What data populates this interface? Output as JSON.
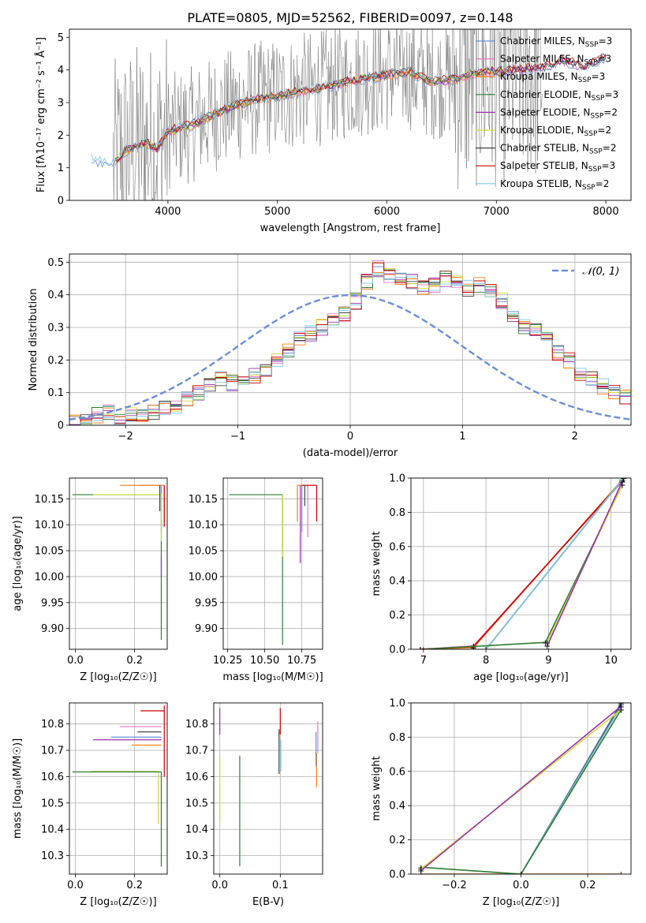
{
  "figure_title": "PLATE=0805, MJD=52562, FIBERID=0097, z=0.148",
  "colors": {
    "grid": "#b0b0b0",
    "spectrum": "#808080",
    "gauss": "#6a8fd8"
  },
  "models": [
    {
      "name": "Chabrier MILES",
      "nssp": "3",
      "color": "#6a8fd8"
    },
    {
      "name": "Salpeter MILES",
      "nssp": "3",
      "color": "#e377c2"
    },
    {
      "name": "Kroupa MILES",
      "nssp": "3",
      "color": "#ff7f0e"
    },
    {
      "name": "Chabrier ELODIE",
      "nssp": "3",
      "color": "#2e7d32"
    },
    {
      "name": "Salpeter ELODIE",
      "nssp": "2",
      "color": "#9b30b0"
    },
    {
      "name": "Kroupa ELODIE",
      "nssp": "2",
      "color": "#cddc39"
    },
    {
      "name": "Chabrier STELIB",
      "nssp": "2",
      "color": "#444444"
    },
    {
      "name": "Salpeter STELIB",
      "nssp": "3",
      "color": "#cc0000"
    },
    {
      "name": "Kroupa STELIB",
      "nssp": "2",
      "color": "#7ec8e3"
    }
  ],
  "chart_data": [
    {
      "id": "spectrum",
      "type": "line",
      "title": "PLATE=0805, MJD=52562, FIBERID=0097, z=0.148",
      "xlabel": "wavelength [Angstrom, rest frame]",
      "ylabel": "Flux [fλ10⁻¹⁷ erg cm⁻² s⁻¹ Å⁻¹]",
      "xlim": [
        3100,
        8230
      ],
      "ylim": [
        0,
        5.25
      ],
      "xticks": [
        4000,
        5000,
        6000,
        7000,
        8000
      ],
      "yticks": [
        0,
        1,
        2,
        3,
        4,
        5
      ],
      "grid": false,
      "legend": "right",
      "continuum": {
        "x": [
          3300,
          3400,
          3500,
          3600,
          3700,
          3800,
          3900,
          4000,
          4200,
          4400,
          4600,
          4800,
          5000,
          5200,
          5400,
          5600,
          5800,
          6000,
          6200,
          6400,
          6600,
          6800,
          7000,
          7200,
          7400,
          7600,
          7800,
          8000
        ],
        "y": [
          1.25,
          1.15,
          1.1,
          1.5,
          1.65,
          1.75,
          1.6,
          2.1,
          2.3,
          2.6,
          2.9,
          3.1,
          3.2,
          3.35,
          3.45,
          3.6,
          3.75,
          3.85,
          3.95,
          3.65,
          3.7,
          3.9,
          3.95,
          4.0,
          4.05,
          4.3,
          4.1,
          4.4
        ]
      }
    },
    {
      "id": "residuals",
      "type": "line",
      "xlabel": "(data-model)/error",
      "ylabel": "Normed distribution",
      "xlim": [
        -2.5,
        2.5
      ],
      "ylim": [
        0,
        0.525
      ],
      "xticks": [
        -2,
        -1,
        0,
        1,
        2
      ],
      "yticks": [
        0.0,
        0.1,
        0.2,
        0.3,
        0.4,
        0.5
      ],
      "grid": true,
      "legend": "top-right",
      "legend_label": "𝒩(0, 1)",
      "histogram": {
        "bin_width": 0.1,
        "x_start": -2.5,
        "values": [
          0.01,
          0.02,
          0.03,
          0.04,
          0.02,
          0.03,
          0.03,
          0.04,
          0.05,
          0.06,
          0.08,
          0.1,
          0.12,
          0.14,
          0.13,
          0.15,
          0.15,
          0.17,
          0.2,
          0.23,
          0.27,
          0.28,
          0.3,
          0.32,
          0.34,
          0.38,
          0.44,
          0.48,
          0.46,
          0.45,
          0.44,
          0.42,
          0.43,
          0.45,
          0.44,
          0.42,
          0.43,
          0.41,
          0.38,
          0.34,
          0.3,
          0.3,
          0.26,
          0.22,
          0.2,
          0.16,
          0.14,
          0.12,
          0.1,
          0.09,
          0.07,
          0.06,
          0.05,
          0.05,
          0.04,
          0.04,
          0.03,
          0.03,
          0.03,
          0.02,
          0.02
        ]
      }
    },
    {
      "id": "age-z",
      "type": "line",
      "xlabel": "Z [log₁₀(Z/Z☉)]",
      "ylabel": "age  [log₁₀(age/yr)]",
      "xlim": [
        -0.02,
        0.31
      ],
      "ylim": [
        9.86,
        10.19
      ],
      "xticks": [
        0.0,
        0.2
      ],
      "xtick_labels": [
        "0.0",
        "0.2"
      ],
      "yticks": [
        9.9,
        9.95,
        10.0,
        10.05,
        10.1,
        10.15
      ],
      "ytick_labels": [
        "9.90",
        "9.95",
        "10.00",
        "10.05",
        "10.10",
        "10.15"
      ],
      "grid": true,
      "errorbars": [
        {
          "model": 0,
          "x": 0.29,
          "y": 10.176,
          "xerr": [
            0.08,
            0.0
          ],
          "yerr": [
            0.09,
            0.0
          ]
        },
        {
          "model": 2,
          "x": 0.3,
          "y": 10.176,
          "xerr": [
            0.15,
            0.0
          ],
          "yerr": [
            0.07,
            0.0
          ]
        },
        {
          "model": 3,
          "x": 0.29,
          "y": 10.158,
          "xerr": [
            0.3,
            0.0
          ],
          "yerr": [
            0.28,
            0.0
          ]
        },
        {
          "model": 5,
          "x": 0.29,
          "y": 10.158,
          "xerr": [
            0.23,
            0.0
          ],
          "yerr": [
            0.09,
            0.0
          ]
        },
        {
          "model": 4,
          "x": 0.29,
          "y": 10.02,
          "xerr": [
            0.0,
            0.0
          ],
          "yerr": [
            0.02,
            0.02
          ]
        },
        {
          "model": 7,
          "x": 0.3,
          "y": 10.176,
          "xerr": [
            0.0,
            0.0
          ],
          "yerr": [
            0.08,
            0.0
          ]
        },
        {
          "model": 6,
          "x": 0.285,
          "y": 10.176,
          "xerr": [
            0.0,
            0.0
          ],
          "yerr": [
            0.05,
            0.0
          ]
        }
      ]
    },
    {
      "id": "age-mass",
      "type": "line",
      "xlabel": "mass [log₁₀(M/M☉)]",
      "ylabel": "",
      "xlim": [
        10.22,
        10.89
      ],
      "ylim": [
        9.86,
        10.19
      ],
      "xticks": [
        10.25,
        10.5,
        10.75
      ],
      "xtick_labels": [
        "10.25",
        "10.50",
        "10.75"
      ],
      "yticks": [
        9.9,
        9.95,
        10.0,
        10.05,
        10.1,
        10.15
      ],
      "ytick_labels": [
        "9.90",
        "9.95",
        "10.00",
        "10.05",
        "10.10",
        "10.15"
      ],
      "grid": true,
      "errorbars": [
        {
          "model": 3,
          "x": 10.62,
          "y": 10.158,
          "xerr": [
            0.36,
            0.0
          ],
          "yerr": [
            0.29,
            0.0
          ]
        },
        {
          "model": 5,
          "x": 10.62,
          "y": 10.158,
          "xerr": [
            0.0,
            0.0
          ],
          "yerr": [
            0.12,
            0.0
          ]
        },
        {
          "model": 2,
          "x": 10.72,
          "y": 10.176,
          "xerr": [
            0.0,
            0.12
          ],
          "yerr": [
            0.07,
            0.0
          ]
        },
        {
          "model": 4,
          "x": 10.74,
          "y": 10.176,
          "xerr": [
            0.0,
            0.0
          ],
          "yerr": [
            0.15,
            0.0
          ]
        },
        {
          "model": 0,
          "x": 10.75,
          "y": 10.176,
          "xerr": [
            0.0,
            0.0
          ],
          "yerr": [
            0.09,
            0.0
          ]
        },
        {
          "model": 1,
          "x": 10.79,
          "y": 10.176,
          "xerr": [
            0.0,
            0.0
          ],
          "yerr": [
            0.1,
            0.0
          ]
        },
        {
          "model": 7,
          "x": 10.85,
          "y": 10.176,
          "xerr": [
            0.1,
            0.0
          ],
          "yerr": [
            0.07,
            0.0
          ]
        },
        {
          "model": 6,
          "x": 10.77,
          "y": 10.176,
          "xerr": [
            0.0,
            0.0
          ],
          "yerr": [
            0.04,
            0.0
          ]
        }
      ]
    },
    {
      "id": "weight-age",
      "type": "line",
      "xlabel": "age  [log₁₀(age/yr)]",
      "ylabel": "mass weight",
      "xlim": [
        6.8,
        10.32
      ],
      "ylim": [
        0,
        1.0
      ],
      "xticks": [
        7,
        8,
        9,
        10
      ],
      "yticks": [
        0.0,
        0.2,
        0.4,
        0.6,
        0.8,
        1.0
      ],
      "ytick_labels": [
        "0.0",
        "0.2",
        "0.4",
        "0.6",
        "0.8",
        "1.0"
      ],
      "grid": true,
      "series": [
        {
          "model": 1,
          "x": [
            6.95,
            7.8,
            10.18
          ],
          "y": [
            0.0,
            0.02,
            0.98
          ]
        },
        {
          "model": 2,
          "x": [
            6.95,
            7.8,
            10.18
          ],
          "y": [
            0.0,
            0.01,
            0.99
          ]
        },
        {
          "model": 7,
          "x": [
            6.95,
            7.8,
            10.18
          ],
          "y": [
            0.0,
            0.015,
            0.985
          ]
        },
        {
          "model": 0,
          "x": [
            8.0,
            10.2
          ],
          "y": [
            0.0,
            1.0
          ]
        },
        {
          "model": 6,
          "x": [
            8.0,
            10.2
          ],
          "y": [
            0.0,
            1.0
          ]
        },
        {
          "model": 8,
          "x": [
            8.0,
            10.2
          ],
          "y": [
            0.0,
            1.0
          ]
        },
        {
          "model": 3,
          "x": [
            7.0,
            8.95,
            10.18
          ],
          "y": [
            0.0,
            0.04,
            0.96
          ]
        },
        {
          "model": 5,
          "x": [
            8.98,
            10.18
          ],
          "y": [
            0.04,
            0.96
          ]
        },
        {
          "model": 4,
          "x": [
            8.98,
            10.18
          ],
          "y": [
            0.02,
            0.98
          ]
        }
      ]
    },
    {
      "id": "mass-z",
      "type": "line",
      "xlabel": "Z [log₁₀(Z/Z☉)]",
      "ylabel": "mass [log₁₀(M/M☉)]",
      "xlim": [
        -0.02,
        0.31
      ],
      "ylim": [
        10.23,
        10.88
      ],
      "xticks": [
        0.0,
        0.2
      ],
      "xtick_labels": [
        "0.0",
        "0.2"
      ],
      "yticks": [
        10.3,
        10.4,
        10.5,
        10.6,
        10.7,
        10.8
      ],
      "ytick_labels": [
        "10.3",
        "10.4",
        "10.5",
        "10.6",
        "10.7",
        "10.8"
      ],
      "grid": true,
      "errorbars": [
        {
          "model": 7,
          "x": 0.3,
          "y": 10.85,
          "xerr": [
            0.08,
            0.0
          ],
          "yerr": [
            0.25,
            0.02
          ]
        },
        {
          "model": 1,
          "x": 0.29,
          "y": 10.79,
          "xerr": [
            0.14,
            0.0
          ],
          "yerr": [
            0.0,
            0.0
          ]
        },
        {
          "model": 6,
          "x": 0.29,
          "y": 10.77,
          "xerr": [
            0.08,
            0.0
          ],
          "yerr": [
            0.0,
            0.0
          ]
        },
        {
          "model": 0,
          "x": 0.29,
          "y": 10.75,
          "xerr": [
            0.17,
            0.0
          ],
          "yerr": [
            0.0,
            0.0
          ]
        },
        {
          "model": 4,
          "x": 0.29,
          "y": 10.74,
          "xerr": [
            0.23,
            0.0
          ],
          "yerr": [
            0.0,
            0.0
          ]
        },
        {
          "model": 2,
          "x": 0.29,
          "y": 10.72,
          "xerr": [
            0.1,
            0.0
          ],
          "yerr": [
            0.0,
            0.0
          ]
        },
        {
          "model": 5,
          "x": 0.28,
          "y": 10.62,
          "xerr": [
            0.23,
            0.0
          ],
          "yerr": [
            0.2,
            0.0
          ]
        },
        {
          "model": 3,
          "x": 0.29,
          "y": 10.618,
          "xerr": [
            0.3,
            0.0
          ],
          "yerr": [
            0.36,
            0.0
          ]
        }
      ]
    },
    {
      "id": "mass-ebv",
      "type": "line",
      "xlabel": "E(B-V)",
      "ylabel": "",
      "xlim": [
        -0.01,
        0.17
      ],
      "ylim": [
        10.23,
        10.88
      ],
      "xticks": [
        0.0,
        0.1
      ],
      "xtick_labels": [
        "0.0",
        "0.1"
      ],
      "yticks": [
        10.3,
        10.4,
        10.5,
        10.6,
        10.7,
        10.8
      ],
      "ytick_labels": [
        "10.3",
        "10.4",
        "10.5",
        "10.6",
        "10.7",
        "10.8"
      ],
      "grid": true,
      "errorbars": [
        {
          "model": 4,
          "x": 0.0,
          "y": 10.8,
          "xerr": [
            0.0,
            0.0
          ],
          "yerr": [
            0.04,
            0.06
          ]
        },
        {
          "model": 5,
          "x": 0.0,
          "y": 10.6,
          "xerr": [
            0.0,
            0.0
          ],
          "yerr": [
            0.17,
            0.08
          ]
        },
        {
          "model": 3,
          "x": 0.033,
          "y": 10.47,
          "xerr": [
            0.0,
            0.0
          ],
          "yerr": [
            0.21,
            0.21
          ]
        },
        {
          "model": 6,
          "x": 0.098,
          "y": 10.7,
          "xerr": [
            0.0,
            0.0
          ],
          "yerr": [
            0.09,
            0.08
          ]
        },
        {
          "model": 7,
          "x": 0.1,
          "y": 10.81,
          "xerr": [
            0.0,
            0.0
          ],
          "yerr": [
            0.05,
            0.05
          ]
        },
        {
          "model": 8,
          "x": 0.101,
          "y": 10.7,
          "xerr": [
            0.0,
            0.0
          ],
          "yerr": [
            0.08,
            0.04
          ]
        },
        {
          "model": 2,
          "x": 0.16,
          "y": 10.63,
          "xerr": [
            0.0,
            0.0
          ],
          "yerr": [
            0.07,
            0.06
          ]
        },
        {
          "model": 0,
          "x": 0.159,
          "y": 10.7,
          "xerr": [
            0.0,
            0.0
          ],
          "yerr": [
            0.06,
            0.07
          ]
        },
        {
          "model": 1,
          "x": 0.162,
          "y": 10.74,
          "xerr": [
            0.0,
            0.0
          ],
          "yerr": [
            0.05,
            0.07
          ]
        }
      ]
    },
    {
      "id": "weight-z",
      "type": "line",
      "xlabel": "Z [log₁₀(Z/Z☉)]",
      "ylabel": "mass weight",
      "xlim": [
        -0.33,
        0.33
      ],
      "ylim": [
        0,
        1.0
      ],
      "xticks": [
        -0.2,
        0.0,
        0.2
      ],
      "xtick_labels": [
        "−0.2",
        "0.0",
        "0.2"
      ],
      "yticks": [
        0.0,
        0.2,
        0.4,
        0.6,
        0.8,
        1.0
      ],
      "ytick_labels": [
        "0.0",
        "0.2",
        "0.4",
        "0.6",
        "0.8",
        "1.0"
      ],
      "grid": true,
      "series": [
        {
          "model": 2,
          "x": [
            -0.3,
            0.3
          ],
          "y": [
            0.0,
            0.0
          ]
        },
        {
          "model": 0,
          "x": [
            0.0,
            0.3
          ],
          "y": [
            0.0,
            1.0
          ]
        },
        {
          "model": 6,
          "x": [
            0.0,
            0.3
          ],
          "y": [
            0.0,
            0.99
          ]
        },
        {
          "model": 8,
          "x": [
            0.0,
            0.3
          ],
          "y": [
            0.0,
            0.98
          ]
        },
        {
          "model": 3,
          "x": [
            -0.3,
            0.0,
            0.3
          ],
          "y": [
            0.04,
            0.0,
            0.96
          ]
        },
        {
          "model": 5,
          "x": [
            -0.3,
            0.3
          ],
          "y": [
            0.03,
            0.96
          ]
        },
        {
          "model": 4,
          "x": [
            -0.3,
            0.3
          ],
          "y": [
            0.02,
            0.98
          ]
        }
      ]
    }
  ]
}
